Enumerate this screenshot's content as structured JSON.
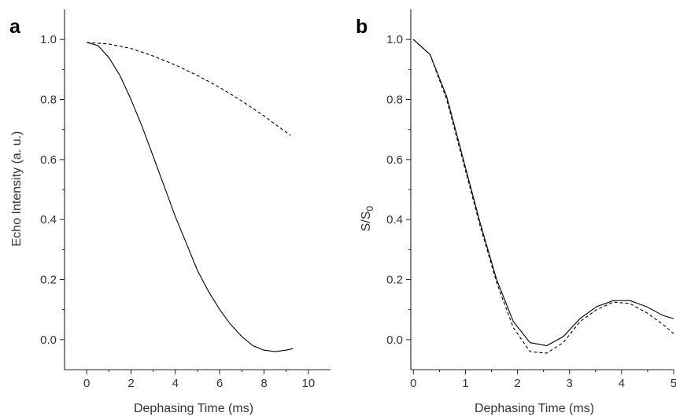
{
  "chart_data": [
    {
      "panel": "a",
      "type": "line",
      "xlabel": "Dephasing Time (ms)",
      "ylabel": "Echo Intensity (a. u.)",
      "xlim": [
        -1,
        11
      ],
      "ylim": [
        -0.1,
        1.1
      ],
      "xticks": [
        0,
        2,
        4,
        6,
        8,
        10
      ],
      "yticks": [
        0.0,
        0.2,
        0.4,
        0.6,
        0.8,
        1.0
      ],
      "tick_decimals_x": 0,
      "tick_decimals_y": 1,
      "series": [
        {
          "style": "solid",
          "x": [
            0,
            0.5,
            1,
            1.5,
            2,
            2.5,
            3,
            3.5,
            4,
            4.5,
            5,
            5.5,
            6,
            6.5,
            7,
            7.5,
            8,
            8.5,
            9,
            9.3
          ],
          "y": [
            0.99,
            0.98,
            0.94,
            0.88,
            0.8,
            0.71,
            0.61,
            0.51,
            0.41,
            0.32,
            0.23,
            0.16,
            0.1,
            0.05,
            0.01,
            -0.02,
            -0.035,
            -0.04,
            -0.035,
            -0.03
          ]
        },
        {
          "style": "dashed",
          "x": [
            0,
            1,
            2,
            3,
            4,
            5,
            6,
            7,
            8,
            9.2
          ],
          "y": [
            0.99,
            0.985,
            0.97,
            0.945,
            0.915,
            0.88,
            0.84,
            0.795,
            0.745,
            0.68
          ]
        }
      ]
    },
    {
      "panel": "b",
      "type": "line",
      "xlabel": "Dephasing Time (ms)",
      "ylabel": "S/S",
      "ylabel_sub": "0",
      "xlim": [
        -0.05,
        5
      ],
      "ylim": [
        -0.1,
        1.1
      ],
      "xticks": [
        0,
        1,
        2,
        3,
        4,
        5
      ],
      "yticks": [
        0.0,
        0.2,
        0.4,
        0.6,
        0.8,
        1.0
      ],
      "tick_decimals_x": 0,
      "tick_decimals_y": 1,
      "series": [
        {
          "style": "solid",
          "x": [
            0,
            0.32,
            0.64,
            0.96,
            1.28,
            1.6,
            1.92,
            2.24,
            2.56,
            2.88,
            3.2,
            3.52,
            3.84,
            4.16,
            4.48,
            4.8,
            5.0
          ],
          "y": [
            1.0,
            0.95,
            0.81,
            0.6,
            0.39,
            0.2,
            0.06,
            -0.01,
            -0.02,
            0.01,
            0.07,
            0.11,
            0.13,
            0.13,
            0.11,
            0.08,
            0.07
          ]
        },
        {
          "style": "dashed",
          "x": [
            0,
            0.32,
            0.64,
            0.96,
            1.28,
            1.6,
            1.92,
            2.24,
            2.56,
            2.88,
            3.2,
            3.52,
            3.84,
            4.16,
            4.48,
            4.8,
            5.0
          ],
          "y": [
            1.0,
            0.95,
            0.8,
            0.59,
            0.38,
            0.19,
            0.04,
            -0.04,
            -0.045,
            -0.01,
            0.06,
            0.1,
            0.125,
            0.12,
            0.09,
            0.05,
            0.02
          ]
        }
      ]
    }
  ]
}
